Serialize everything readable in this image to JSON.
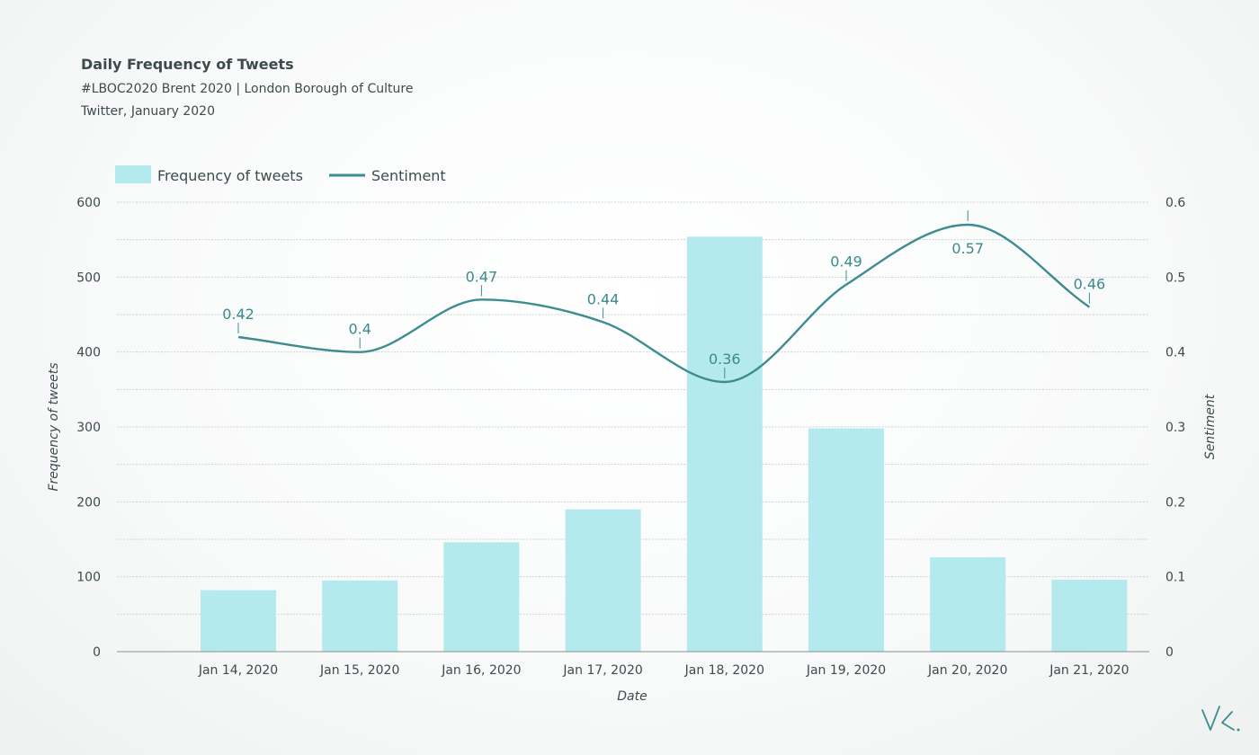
{
  "header": {
    "title": "Daily Frequency of Tweets",
    "subtitle": "#LBOC2020 Brent 2020 | London Borough of Culture",
    "source": "Twitter, January 2020"
  },
  "colors": {
    "bar": "#b4e9ee",
    "line": "#3d8d90",
    "label": "#3b8a8c"
  },
  "chart_data": {
    "type": "bar",
    "title": "",
    "xlabel": "Date",
    "ylabel": "Frequency of tweets",
    "y2label": "Sentiment",
    "categories": [
      "Jan 14, 2020",
      "Jan 15, 2020",
      "Jan 16, 2020",
      "Jan 17, 2020",
      "Jan 18, 2020",
      "Jan 19, 2020",
      "Jan 20, 2020",
      "Jan 21, 2020"
    ],
    "ylim": [
      0,
      600
    ],
    "yticks": [
      0,
      100,
      200,
      300,
      400,
      500,
      600
    ],
    "y2lim": [
      0,
      0.6
    ],
    "y2ticks": [
      0,
      0.1,
      0.2,
      0.3,
      0.4,
      0.5,
      0.6
    ],
    "grid": true,
    "legend_position": "top-left",
    "series": [
      {
        "name": "Frequency of tweets",
        "type": "bar",
        "axis": "left",
        "values": [
          82,
          95,
          146,
          190,
          554,
          298,
          126,
          96
        ]
      },
      {
        "name": "Sentiment",
        "type": "line",
        "axis": "right",
        "smooth": true,
        "values": [
          0.42,
          0.4,
          0.47,
          0.44,
          0.36,
          0.49,
          0.57,
          0.46
        ],
        "labels": [
          "0.42",
          "0.4",
          "0.47",
          "0.44",
          "0.36",
          "0.49",
          "0.57",
          "0.46"
        ]
      }
    ]
  },
  "signature": "VK."
}
